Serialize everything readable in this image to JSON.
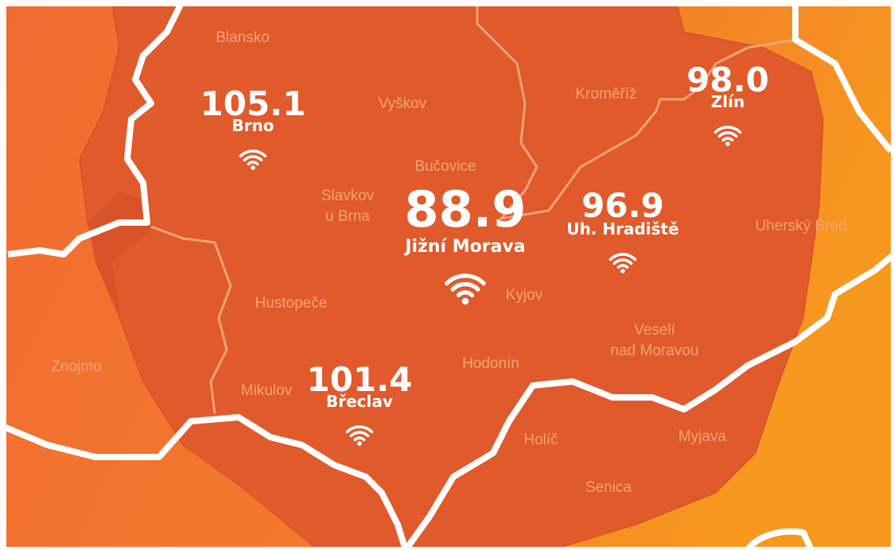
{
  "stations": [
    {
      "frequency": "105.1",
      "name": "Brno"
    },
    {
      "frequency": "88.9",
      "name": "Jižní Morava"
    },
    {
      "frequency": "96.9",
      "name": "Uh. Hradiště"
    },
    {
      "frequency": "98.0",
      "name": "Zlín"
    },
    {
      "frequency": "101.4",
      "name": "Břeclav"
    }
  ],
  "towns": [
    {
      "lines": [
        "Blansko"
      ]
    },
    {
      "lines": [
        "Vyškov"
      ]
    },
    {
      "lines": [
        "Kroměříž"
      ]
    },
    {
      "lines": [
        "Bučovice"
      ]
    },
    {
      "lines": [
        "Slavkov",
        "u Brna"
      ]
    },
    {
      "lines": [
        "Uherský Brod"
      ]
    },
    {
      "lines": [
        "Hustopeče"
      ]
    },
    {
      "lines": [
        "Kyjov"
      ]
    },
    {
      "lines": [
        "Veselí",
        "nad Moravou"
      ]
    },
    {
      "lines": [
        "Znojmo"
      ]
    },
    {
      "lines": [
        "Hodonín"
      ]
    },
    {
      "lines": [
        "Mikulov"
      ]
    },
    {
      "lines": [
        "Holíč"
      ]
    },
    {
      "lines": [
        "Myjava"
      ]
    },
    {
      "lines": [
        "Senica"
      ]
    }
  ]
}
